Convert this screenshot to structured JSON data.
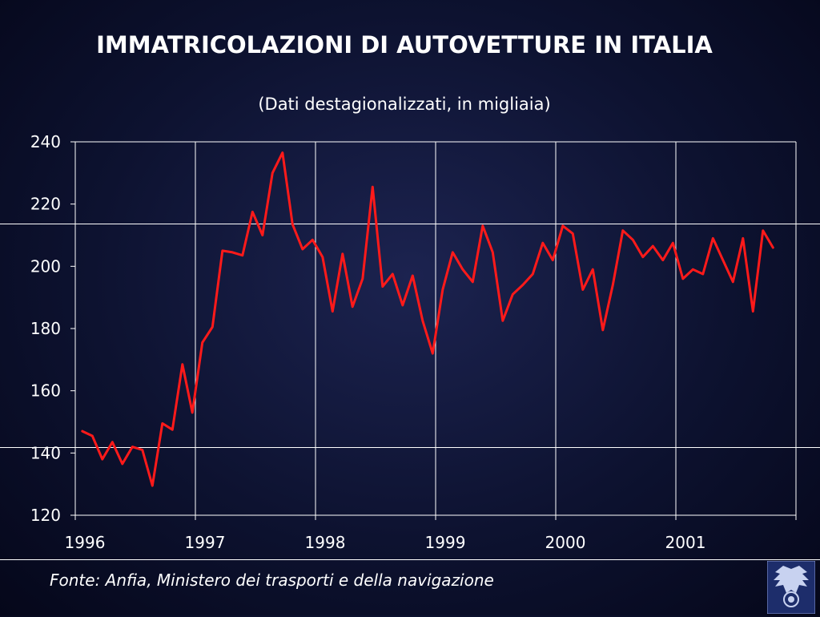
{
  "title": "IMMATRICOLAZIONI DI AUTOVETTURE IN ITALIA",
  "subtitle": "(Dati destagionalizzati, in migliaia)",
  "source": "Fonte: Anfia, Ministero dei trasporti e della navigazione",
  "logo_icon": "eagle-emblem-icon",
  "colors": {
    "background": "#0d1230",
    "line": "#ff1a1a",
    "grid": "#ffffff",
    "text": "#ffffff"
  },
  "chart_data": {
    "type": "line",
    "title": "IMMATRICOLAZIONI DI AUTOVETTURE IN ITALIA",
    "subtitle": "(Dati destagionalizzati, in migliaia)",
    "xlabel": "",
    "ylabel": "",
    "ylim": [
      120,
      240
    ],
    "yticks": [
      120,
      140,
      160,
      180,
      200,
      220,
      240
    ],
    "xticks": [
      "1996",
      "1997",
      "1998",
      "1999",
      "2000",
      "2001"
    ],
    "xlim_months": [
      0,
      72
    ],
    "grid": "vertical",
    "series": [
      {
        "values": [
          147,
          145.5,
          138,
          143.5,
          136.5,
          142,
          141,
          129.5,
          149.5,
          147.5,
          168.5,
          153,
          175.5,
          180.5,
          205,
          204.5,
          203.5,
          217.5,
          210,
          230,
          236.5,
          213.5,
          205.5,
          208.5,
          203,
          185.5,
          204,
          187,
          196,
          225.5,
          193.5,
          197.5,
          187.5,
          197,
          182.5,
          172,
          192.5,
          204.5,
          199,
          195,
          213,
          204.5,
          182.5,
          191,
          194,
          197.5,
          207.5,
          202,
          213,
          210.5,
          192.5,
          199,
          179.5,
          194,
          211.5,
          208.5,
          203,
          206.5,
          202,
          207.5,
          196,
          199,
          197.5,
          209,
          202,
          195,
          209,
          185.5,
          211.5,
          206
        ]
      }
    ]
  }
}
